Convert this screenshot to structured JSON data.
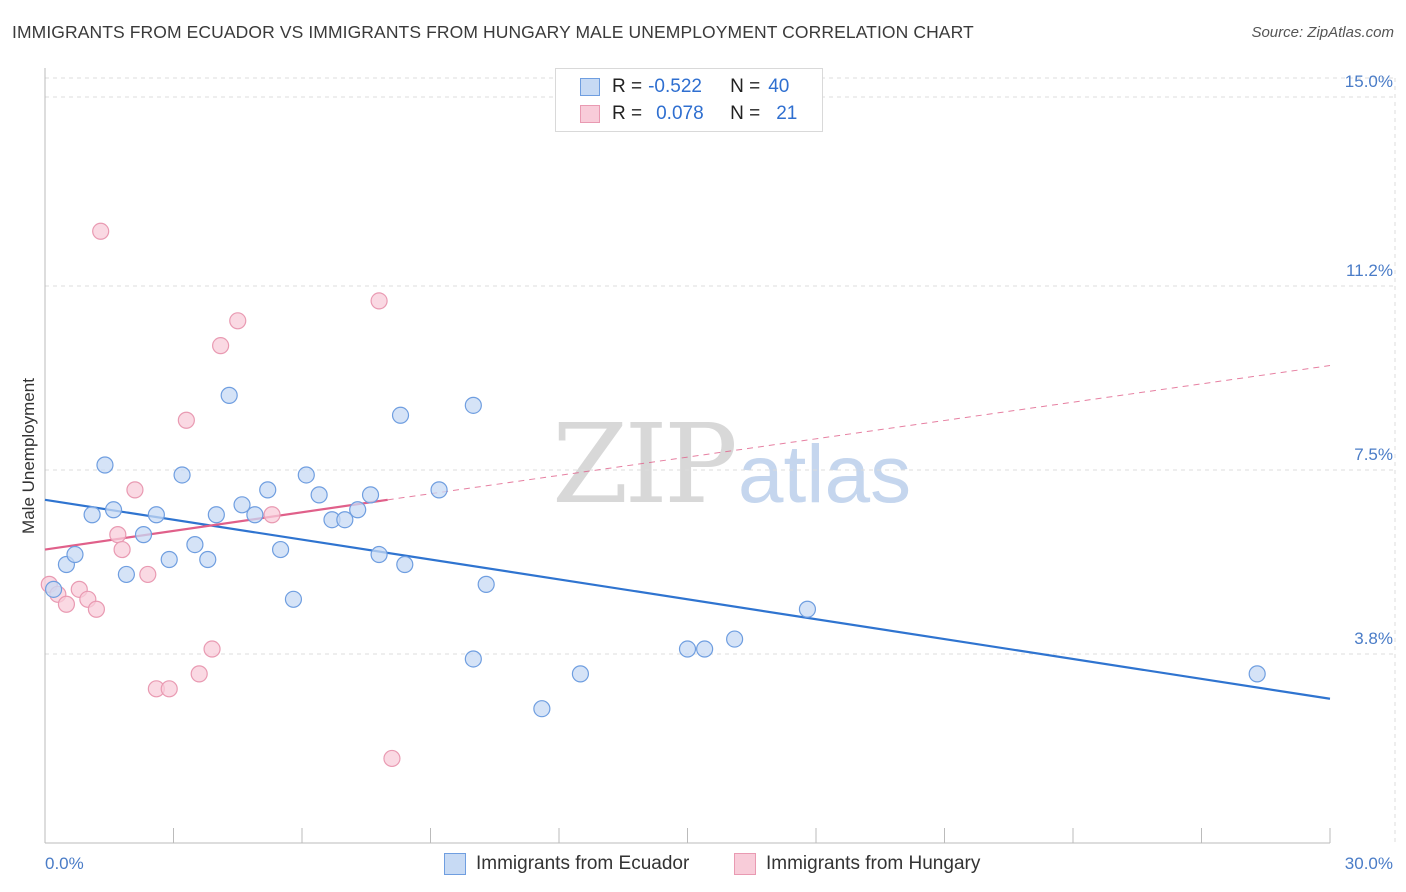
{
  "title": "IMMIGRANTS FROM ECUADOR VS IMMIGRANTS FROM HUNGARY MALE UNEMPLOYMENT CORRELATION CHART",
  "source": "Source: ZipAtlas.com",
  "watermark": {
    "zip": "ZIP",
    "atlas": "atlas"
  },
  "legend": {
    "ecuador": {
      "r_label": "R =",
      "r_value": "-0.522",
      "n_label": "N =",
      "n_value": "40"
    },
    "hungary": {
      "r_label": "R =",
      "r_value": "0.078",
      "n_label": "N =",
      "n_value": "21"
    }
  },
  "colors": {
    "ecuador_fill": "#c7daf4",
    "ecuador_stroke": "#6f9ee0",
    "ecuador_line": "#2f74d0",
    "hungary_fill": "#f8ccd9",
    "hungary_stroke": "#e99ab2",
    "hungary_line": "#e0608a",
    "grid": "#dcdcdc",
    "tick_text": "#4a7cc7"
  },
  "chart_data": {
    "type": "scatter",
    "title": "IMMIGRANTS FROM ECUADOR VS IMMIGRANTS FROM HUNGARY MALE UNEMPLOYMENT CORRELATION CHART",
    "xlabel": "",
    "ylabel": "Male Unemployment",
    "xlim": [
      0,
      30
    ],
    "ylim": [
      0,
      15.5
    ],
    "x_tick_labels": [
      "0.0%",
      "30.0%"
    ],
    "y_ticks": [
      3.8,
      7.5,
      11.2,
      15.0
    ],
    "y_tick_labels": [
      "3.8%",
      "7.5%",
      "11.2%",
      "15.0%"
    ],
    "legend_position": "bottom-center",
    "series": [
      {
        "name": "Immigrants from Ecuador",
        "points": [
          [
            0.2,
            5.1
          ],
          [
            0.5,
            5.6
          ],
          [
            0.7,
            5.8
          ],
          [
            1.1,
            6.6
          ],
          [
            1.4,
            7.6
          ],
          [
            1.6,
            6.7
          ],
          [
            1.9,
            5.4
          ],
          [
            2.3,
            6.2
          ],
          [
            2.6,
            6.6
          ],
          [
            2.9,
            5.7
          ],
          [
            3.2,
            7.4
          ],
          [
            3.5,
            6.0
          ],
          [
            3.8,
            5.7
          ],
          [
            4.0,
            6.6
          ],
          [
            4.3,
            9.0
          ],
          [
            4.6,
            6.8
          ],
          [
            4.9,
            6.6
          ],
          [
            5.2,
            7.1
          ],
          [
            5.5,
            5.9
          ],
          [
            5.8,
            4.9
          ],
          [
            6.1,
            7.4
          ],
          [
            6.4,
            7.0
          ],
          [
            6.7,
            6.5
          ],
          [
            7.0,
            6.5
          ],
          [
            7.3,
            6.7
          ],
          [
            7.6,
            7.0
          ],
          [
            7.8,
            5.8
          ],
          [
            8.3,
            8.6
          ],
          [
            8.4,
            5.6
          ],
          [
            9.2,
            7.1
          ],
          [
            10.0,
            8.8
          ],
          [
            10.0,
            3.7
          ],
          [
            10.3,
            5.2
          ],
          [
            11.6,
            2.7
          ],
          [
            12.5,
            3.4
          ],
          [
            15.0,
            3.9
          ],
          [
            15.4,
            3.9
          ],
          [
            16.1,
            4.1
          ],
          [
            17.8,
            4.7
          ],
          [
            28.3,
            3.4
          ]
        ],
        "trend": {
          "x": [
            0.0,
            30.0
          ],
          "y": [
            6.9,
            2.9
          ]
        }
      },
      {
        "name": "Immigrants from Hungary",
        "points": [
          [
            0.1,
            5.2
          ],
          [
            0.3,
            5.0
          ],
          [
            0.5,
            4.8
          ],
          [
            0.8,
            5.1
          ],
          [
            1.0,
            4.9
          ],
          [
            1.2,
            4.7
          ],
          [
            1.3,
            12.3
          ],
          [
            1.7,
            6.2
          ],
          [
            1.8,
            5.9
          ],
          [
            2.1,
            7.1
          ],
          [
            2.4,
            5.4
          ],
          [
            2.6,
            3.1
          ],
          [
            2.9,
            3.1
          ],
          [
            3.3,
            8.5
          ],
          [
            3.6,
            3.4
          ],
          [
            3.9,
            3.9
          ],
          [
            4.1,
            10.0
          ],
          [
            4.5,
            10.5
          ],
          [
            5.3,
            6.6
          ],
          [
            7.8,
            10.9
          ],
          [
            8.1,
            1.7
          ]
        ],
        "trend": {
          "x": [
            0.0,
            8.0
          ],
          "y": [
            5.9,
            6.9
          ]
        },
        "trend_extension": {
          "x": [
            8.0,
            30.0
          ],
          "y": [
            6.9,
            9.6
          ]
        }
      }
    ]
  },
  "bottom_legend": {
    "ecuador_label": "Immigrants from Ecuador",
    "hungary_label": "Immigrants from Hungary"
  }
}
